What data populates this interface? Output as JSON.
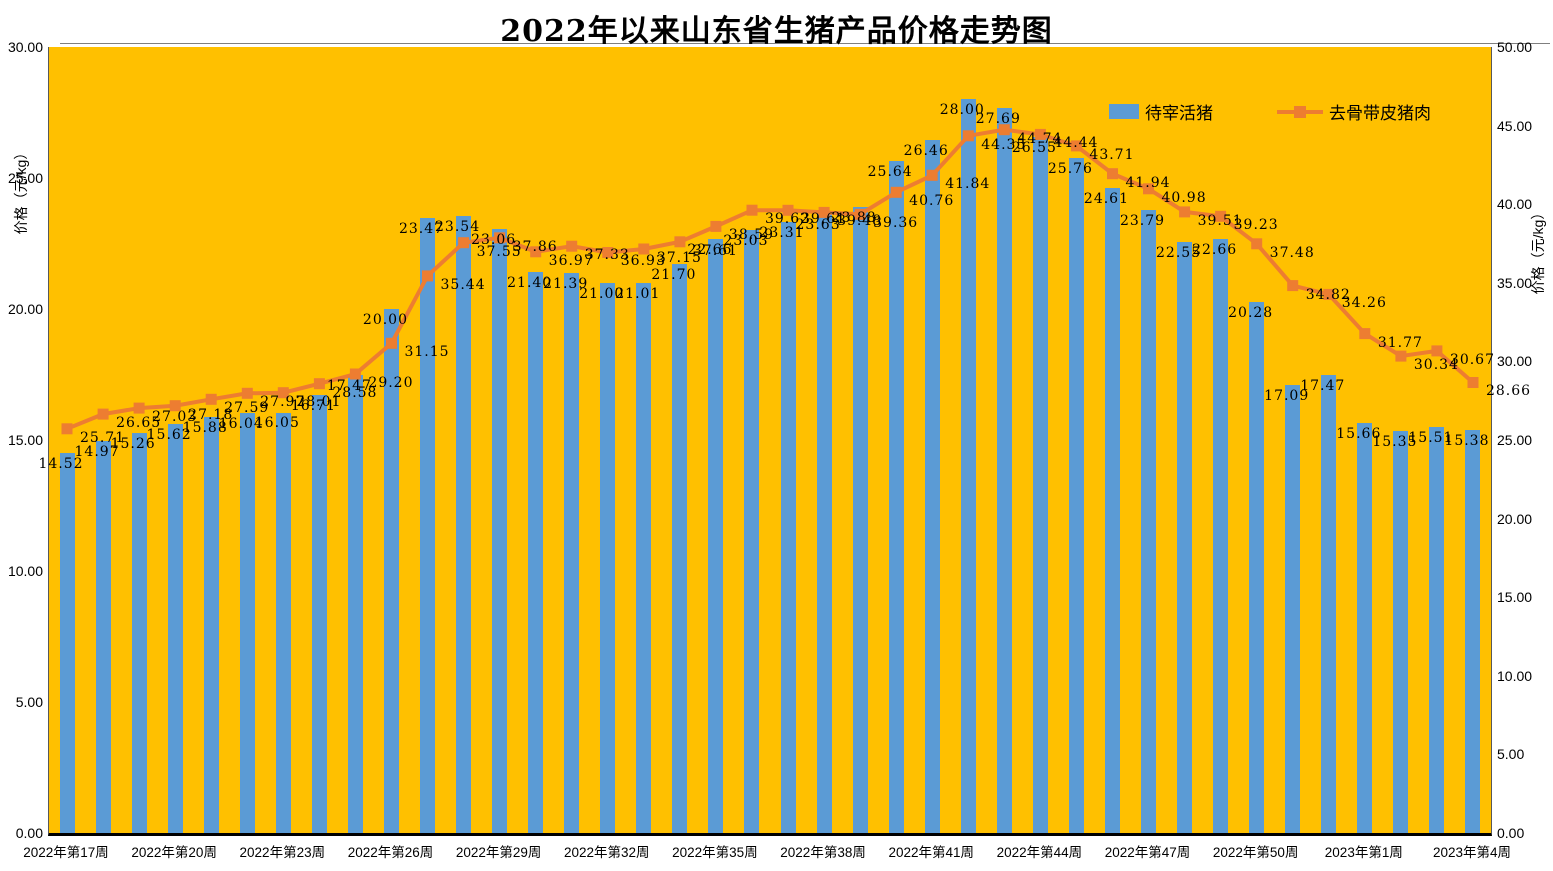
{
  "title": "2022年以来山东省生猪产品价格走势图",
  "legend": {
    "bar_label": "待宰活猪",
    "line_label": "去骨带皮猪肉"
  },
  "colors": {
    "plot_background": "#FFC000",
    "bar_fill": "#5B9BD5",
    "line_stroke": "#ED7D31",
    "marker_fill": "#ED7D31",
    "axis_line": "#595959",
    "x_axis_line": "#000000",
    "text": "#000000"
  },
  "left_axis": {
    "title": "价格（元/kg）",
    "min": 0,
    "max": 30,
    "tick_labels": [
      "30.00",
      "25.00",
      "20.00",
      "15.00",
      "10.00",
      "5.00",
      "0.00"
    ]
  },
  "right_axis": {
    "title": "价格（元/kg）",
    "min": 0,
    "max": 50,
    "tick_labels": [
      "50.00",
      "45.00",
      "40.00",
      "35.00",
      "30.00",
      "25.00",
      "20.00",
      "15.00",
      "10.00",
      "5.00",
      "0.00"
    ]
  },
  "x_axis": {
    "tick_labels": [
      "2022年第17周",
      "2022年第20周",
      "2022年第23周",
      "2022年第26周",
      "2022年第29周",
      "2022年第32周",
      "2022年第35周",
      "2022年第38周",
      "2022年第41周",
      "2022年第44周",
      "2022年第47周",
      "2022年第50周",
      "2023年第1周",
      "2023年第4周"
    ]
  },
  "chart_data": {
    "type": "combo",
    "title": "2022年以来山东省生猪产品价格走势图",
    "x_tick_labels": [
      "2022年第17周",
      "2022年第20周",
      "2022年第23周",
      "2022年第26周",
      "2022年第29周",
      "2022年第32周",
      "2022年第35周",
      "2022年第38周",
      "2022年第41周",
      "2022年第44周",
      "2022年第47周",
      "2022年第50周",
      "2023年第1周",
      "2023年第4周"
    ],
    "points_per_tick": 3,
    "n_points": 40,
    "left_ylim": [
      0,
      30
    ],
    "right_ylim": [
      0,
      50
    ],
    "grid": false,
    "legend_position": "top-right-inside",
    "series": [
      {
        "name": "待宰活猪",
        "type": "bar",
        "axis": "left",
        "color": "#5B9BD5",
        "values": [
          14.52,
          14.97,
          15.26,
          15.62,
          15.88,
          16.04,
          16.05,
          16.71,
          17.47,
          20.0,
          23.47,
          23.54,
          23.06,
          21.4,
          21.39,
          21.0,
          21.01,
          21.7,
          22.66,
          23.03,
          23.31,
          23.63,
          23.88,
          25.64,
          26.46,
          28.0,
          27.69,
          26.55,
          25.76,
          24.61,
          23.79,
          22.55,
          22.66,
          20.28,
          17.09,
          17.47,
          15.66,
          15.35,
          15.51,
          15.38
        ]
      },
      {
        "name": "去骨带皮猪肉",
        "type": "line",
        "axis": "right",
        "color": "#ED7D31",
        "marker": "square",
        "values": [
          25.71,
          26.65,
          27.03,
          27.18,
          27.59,
          27.97,
          28.01,
          28.58,
          29.2,
          31.15,
          35.44,
          37.55,
          37.86,
          36.97,
          37.33,
          36.93,
          37.15,
          37.61,
          38.59,
          39.62,
          39.61,
          39.48,
          39.36,
          40.76,
          41.84,
          44.35,
          44.74,
          44.44,
          43.71,
          41.94,
          40.98,
          39.51,
          39.23,
          37.48,
          34.82,
          34.26,
          31.77,
          30.34,
          30.67,
          28.66
        ]
      }
    ]
  }
}
